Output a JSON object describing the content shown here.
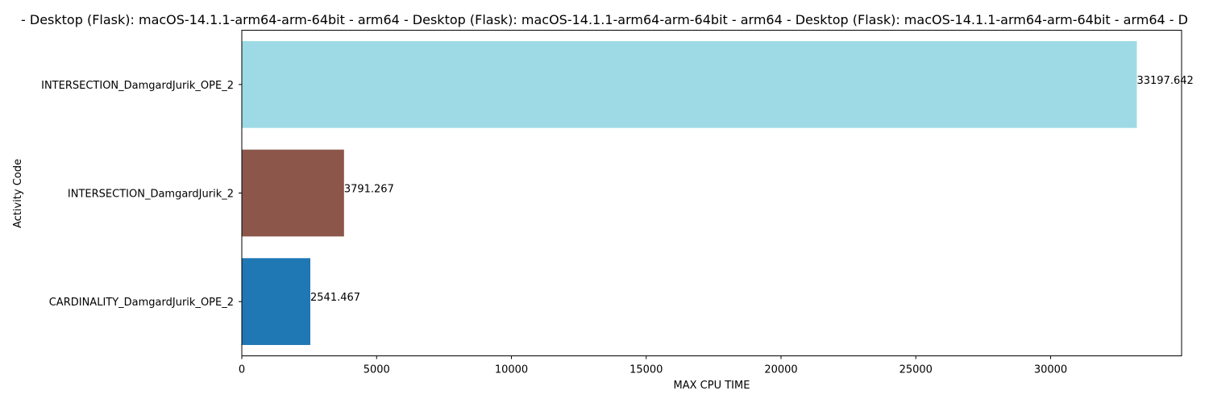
{
  "chart_data": {
    "type": "bar",
    "orientation": "horizontal",
    "title": "- Desktop (Flask): macOS-14.1.1-arm64-arm-64bit - arm64 - Desktop (Flask): macOS-14.1.1-arm64-arm-64bit - arm64 - Desktop (Flask): macOS-14.1.1-arm64-arm-64bit - arm64 - D",
    "xlabel": "MAX CPU TIME",
    "ylabel": "Activity Code",
    "categories": [
      "INTERSECTION_DamgardJurik_OPE_2",
      "INTERSECTION_DamgardJurik_2",
      "CARDINALITY_DamgardJurik_OPE_2"
    ],
    "values": [
      33197.642,
      3791.267,
      2541.467
    ],
    "value_labels": [
      "33197.642",
      "3791.267",
      "2541.467"
    ],
    "colors": [
      "#9edae5",
      "#8c564b",
      "#1f77b4"
    ],
    "xlim": [
      0,
      34857.5
    ],
    "xticks": [
      0,
      5000,
      10000,
      15000,
      20000,
      25000,
      30000
    ],
    "xtick_labels": [
      "0",
      "5000",
      "10000",
      "15000",
      "20000",
      "25000",
      "30000"
    ],
    "grid": false,
    "legend": "none"
  }
}
